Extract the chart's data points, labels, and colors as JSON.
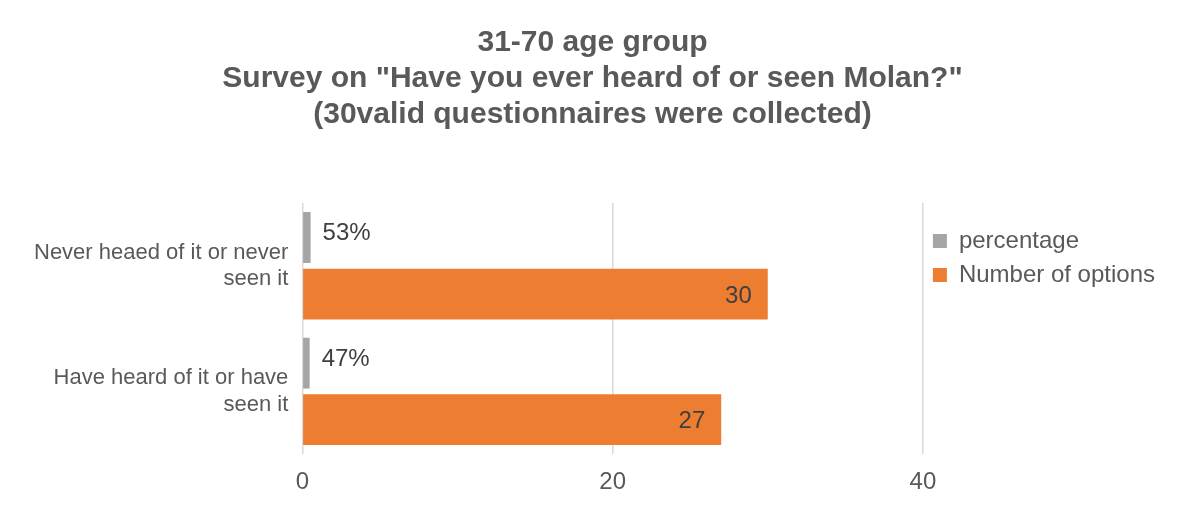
{
  "chart_data": {
    "type": "bar",
    "orientation": "horizontal",
    "title": "31-70 age group\nSurvey on \"Have you ever heard of or seen Molan?\"\n(30valid questionnaires were collected)",
    "categories": [
      "Never heaed of it or never seen it",
      "Have heard of it or have seen it"
    ],
    "series": [
      {
        "name": "percentage",
        "color": "#a5a5a5",
        "values": [
          0.53,
          0.47
        ],
        "value_labels": [
          "53%",
          "47%"
        ]
      },
      {
        "name": "Number of options",
        "color": "#ed7d31",
        "values": [
          30,
          27
        ],
        "value_labels": [
          "30",
          "27"
        ]
      }
    ],
    "xlim": [
      0,
      40
    ],
    "xticks": [
      0,
      20,
      40
    ],
    "grid": "x",
    "legend": "right"
  }
}
